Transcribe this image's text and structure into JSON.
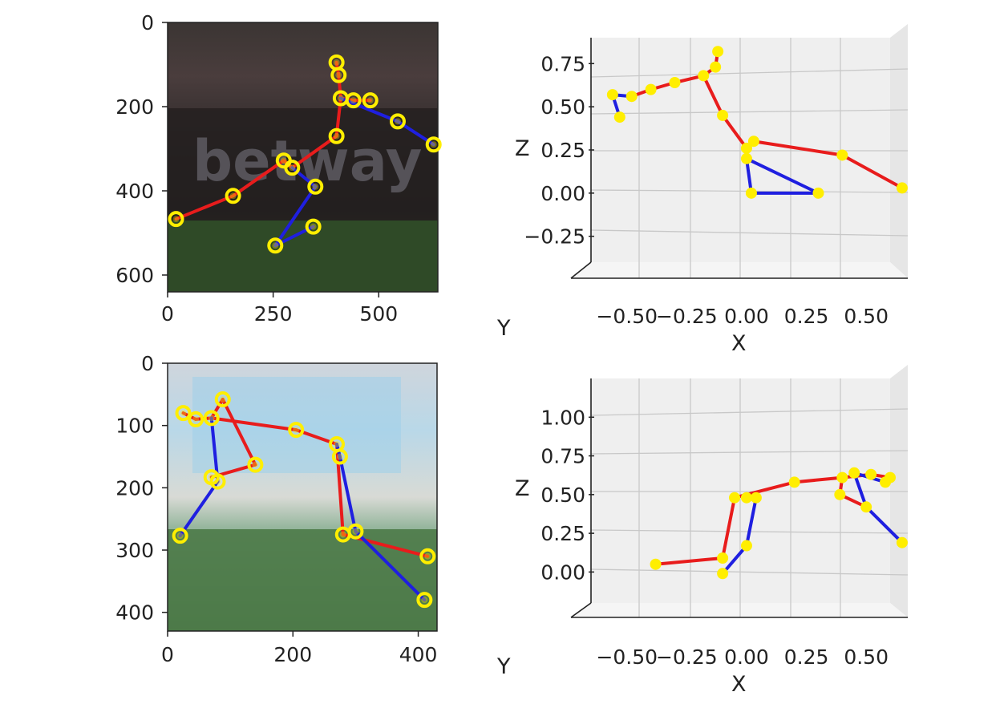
{
  "colors": {
    "left_limb": "#1f1fe0",
    "right_limb": "#e81c1c",
    "joint": "#ffee00",
    "pane": "#efefef",
    "grid": "#c8c8c8",
    "axis": "#222222"
  },
  "chart_data": [
    {
      "type": "scatter",
      "description_of_content": "image panel with 2D pose overlay",
      "xlim": [
        0,
        640
      ],
      "ylim": [
        640,
        0
      ],
      "x_ticks": [
        "0",
        "250",
        "500"
      ],
      "x_tick_values": [
        0,
        250,
        500
      ],
      "y_ticks": [
        "0",
        "200",
        "400",
        "600"
      ],
      "y_tick_values": [
        0,
        200,
        400,
        600
      ],
      "joints": [
        [
          20,
          467
        ],
        [
          155,
          412
        ],
        [
          275,
          328
        ],
        [
          295,
          345
        ],
        [
          350,
          390
        ],
        [
          345,
          485
        ],
        [
          255,
          530
        ],
        [
          400,
          270
        ],
        [
          410,
          180
        ],
        [
          405,
          125
        ],
        [
          400,
          95
        ],
        [
          440,
          185
        ],
        [
          480,
          185
        ],
        [
          545,
          235
        ],
        [
          630,
          290
        ]
      ],
      "bones": [
        {
          "a": 0,
          "b": 1,
          "side": "right"
        },
        {
          "a": 1,
          "b": 2,
          "side": "right"
        },
        {
          "a": 2,
          "b": 3,
          "side": "right"
        },
        {
          "a": 3,
          "b": 7,
          "side": "right"
        },
        {
          "a": 7,
          "b": 8,
          "side": "right"
        },
        {
          "a": 8,
          "b": 9,
          "side": "right"
        },
        {
          "a": 9,
          "b": 10,
          "side": "right"
        },
        {
          "a": 8,
          "b": 11,
          "side": "right"
        },
        {
          "a": 11,
          "b": 12,
          "side": "right"
        },
        {
          "a": 3,
          "b": 4,
          "side": "left"
        },
        {
          "a": 4,
          "b": 6,
          "side": "left"
        },
        {
          "a": 6,
          "b": 5,
          "side": "left"
        },
        {
          "a": 8,
          "b": 13,
          "side": "left"
        },
        {
          "a": 13,
          "b": 14,
          "side": "left"
        }
      ]
    },
    {
      "type": "scatter",
      "description_of_content": "3D pose, front view",
      "xlabel": "X",
      "zlabel": "Z",
      "ylabel": "Y",
      "xlim": [
        -0.65,
        0.6
      ],
      "zlim": [
        -0.4,
        0.9
      ],
      "x_ticks": [
        "−0.50",
        "−0.25",
        "0.00",
        "0.25",
        "0.50"
      ],
      "x_tick_values": [
        -0.5,
        -0.25,
        0.0,
        0.25,
        0.5
      ],
      "z_ticks": [
        "−0.25",
        "0.00",
        "0.25",
        "0.50",
        "0.75"
      ],
      "z_tick_values": [
        -0.25,
        0.0,
        0.25,
        0.5,
        0.75
      ],
      "joints": [
        [
          -0.56,
          0.57
        ],
        [
          -0.53,
          0.44
        ],
        [
          -0.48,
          0.56
        ],
        [
          -0.4,
          0.6
        ],
        [
          -0.3,
          0.64
        ],
        [
          -0.18,
          0.68
        ],
        [
          -0.13,
          0.73
        ],
        [
          -0.12,
          0.82
        ],
        [
          -0.1,
          0.45
        ],
        [
          0.0,
          0.2
        ],
        [
          0.03,
          0.3
        ],
        [
          0.0,
          0.26
        ],
        [
          0.02,
          0.0
        ],
        [
          0.3,
          0.0
        ],
        [
          0.4,
          0.22
        ],
        [
          0.65,
          0.03
        ]
      ],
      "bones": [
        {
          "a": 0,
          "b": 1,
          "side": "left"
        },
        {
          "a": 0,
          "b": 2,
          "side": "left"
        },
        {
          "a": 2,
          "b": 3,
          "side": "right"
        },
        {
          "a": 3,
          "b": 4,
          "side": "right"
        },
        {
          "a": 4,
          "b": 5,
          "side": "right"
        },
        {
          "a": 5,
          "b": 6,
          "side": "right"
        },
        {
          "a": 6,
          "b": 7,
          "side": "right"
        },
        {
          "a": 5,
          "b": 8,
          "side": "right"
        },
        {
          "a": 8,
          "b": 11,
          "side": "right"
        },
        {
          "a": 11,
          "b": 10,
          "side": "right"
        },
        {
          "a": 10,
          "b": 14,
          "side": "right"
        },
        {
          "a": 14,
          "b": 15,
          "side": "right"
        },
        {
          "a": 9,
          "b": 12,
          "side": "left"
        },
        {
          "a": 12,
          "b": 13,
          "side": "left"
        },
        {
          "a": 13,
          "b": 9,
          "side": "left"
        }
      ]
    },
    {
      "type": "scatter",
      "description_of_content": "image panel with 2D pose overlay",
      "xlim": [
        0,
        430
      ],
      "ylim": [
        430,
        0
      ],
      "x_ticks": [
        "0",
        "200",
        "400"
      ],
      "x_tick_values": [
        0,
        200,
        400
      ],
      "y_ticks": [
        "0",
        "100",
        "200",
        "300",
        "400"
      ],
      "y_tick_values": [
        0,
        100,
        200,
        300,
        400
      ],
      "joints": [
        [
          25,
          80
        ],
        [
          45,
          90
        ],
        [
          88,
          58
        ],
        [
          70,
          88
        ],
        [
          140,
          163
        ],
        [
          70,
          183
        ],
        [
          80,
          190
        ],
        [
          20,
          277
        ],
        [
          205,
          107
        ],
        [
          270,
          130
        ],
        [
          275,
          150
        ],
        [
          280,
          275
        ],
        [
          300,
          270
        ],
        [
          415,
          310
        ],
        [
          410,
          380
        ]
      ],
      "bones": [
        {
          "a": 0,
          "b": 1,
          "side": "right"
        },
        {
          "a": 1,
          "b": 3,
          "side": "right"
        },
        {
          "a": 3,
          "b": 2,
          "side": "right"
        },
        {
          "a": 2,
          "b": 4,
          "side": "right"
        },
        {
          "a": 4,
          "b": 5,
          "side": "right"
        },
        {
          "a": 3,
          "b": 8,
          "side": "right"
        },
        {
          "a": 8,
          "b": 9,
          "side": "right"
        },
        {
          "a": 9,
          "b": 11,
          "side": "right"
        },
        {
          "a": 11,
          "b": 13,
          "side": "right"
        },
        {
          "a": 3,
          "b": 6,
          "side": "left"
        },
        {
          "a": 6,
          "b": 7,
          "side": "left"
        },
        {
          "a": 10,
          "b": 12,
          "side": "left"
        },
        {
          "a": 12,
          "b": 14,
          "side": "left"
        },
        {
          "a": 9,
          "b": 10,
          "side": "left"
        }
      ]
    },
    {
      "type": "scatter",
      "description_of_content": "3D pose, front view",
      "xlabel": "X",
      "zlabel": "Z",
      "ylabel": "Y",
      "xlim": [
        -0.65,
        0.6
      ],
      "zlim": [
        -0.2,
        1.25
      ],
      "x_ticks": [
        "−0.50",
        "−0.25",
        "0.00",
        "0.25",
        "0.50"
      ],
      "x_tick_values": [
        -0.5,
        -0.25,
        0.0,
        0.25,
        0.5
      ],
      "z_ticks": [
        "0.00",
        "0.25",
        "0.50",
        "0.75",
        "1.00"
      ],
      "z_tick_values": [
        0.0,
        0.25,
        0.5,
        0.75,
        1.0
      ],
      "joints": [
        [
          -0.38,
          0.05
        ],
        [
          -0.1,
          0.09
        ],
        [
          -0.1,
          -0.01
        ],
        [
          0.0,
          0.17
        ],
        [
          -0.05,
          0.48
        ],
        [
          0.0,
          0.48
        ],
        [
          0.04,
          0.48
        ],
        [
          0.2,
          0.58
        ],
        [
          0.4,
          0.61
        ],
        [
          0.39,
          0.5
        ],
        [
          0.45,
          0.64
        ],
        [
          0.52,
          0.63
        ],
        [
          0.58,
          0.58
        ],
        [
          0.6,
          0.61
        ],
        [
          0.5,
          0.42
        ],
        [
          0.65,
          0.19
        ]
      ],
      "bones": [
        {
          "a": 0,
          "b": 1,
          "side": "right"
        },
        {
          "a": 1,
          "b": 4,
          "side": "right"
        },
        {
          "a": 4,
          "b": 7,
          "side": "right"
        },
        {
          "a": 7,
          "b": 8,
          "side": "right"
        },
        {
          "a": 8,
          "b": 9,
          "side": "right"
        },
        {
          "a": 9,
          "b": 14,
          "side": "right"
        },
        {
          "a": 8,
          "b": 11,
          "side": "right"
        },
        {
          "a": 11,
          "b": 13,
          "side": "right"
        },
        {
          "a": 2,
          "b": 3,
          "side": "left"
        },
        {
          "a": 3,
          "b": 6,
          "side": "left"
        },
        {
          "a": 6,
          "b": 5,
          "side": "left"
        },
        {
          "a": 10,
          "b": 14,
          "side": "left"
        },
        {
          "a": 14,
          "b": 15,
          "side": "left"
        },
        {
          "a": 10,
          "b": 12,
          "side": "left"
        }
      ]
    }
  ]
}
